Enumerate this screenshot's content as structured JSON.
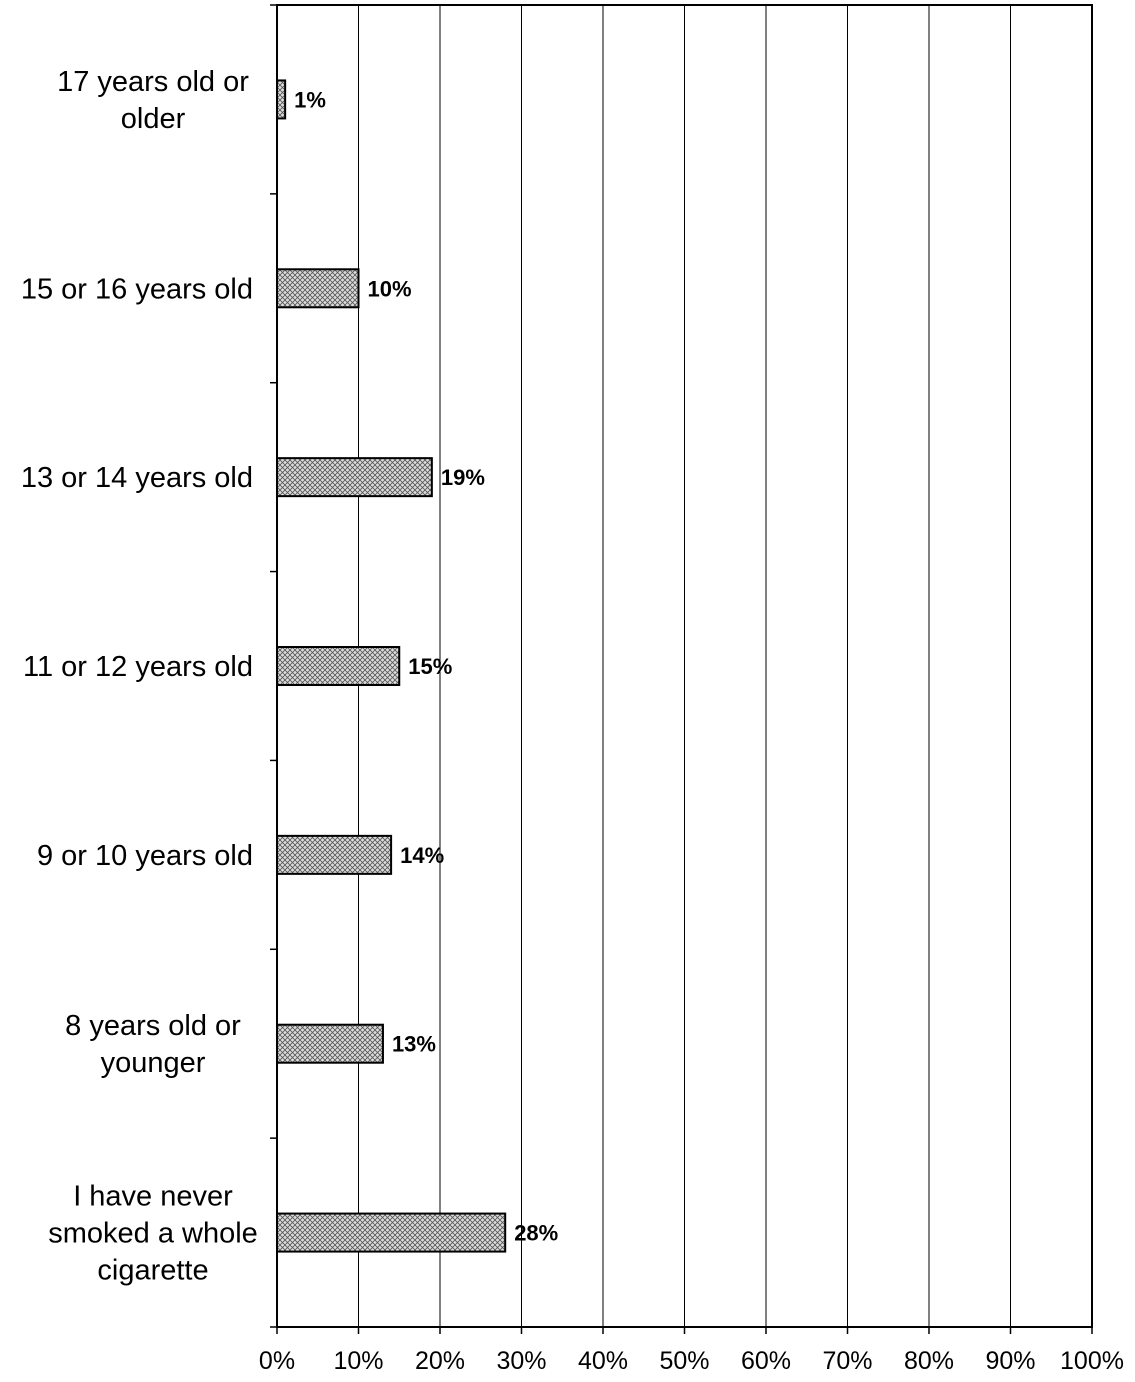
{
  "chart_data": {
    "type": "bar",
    "orientation": "horizontal",
    "categories": [
      "17 years old or older",
      "15 or 16 years old",
      "13 or 14 years old",
      "11 or 12 years old",
      "9 or 10 years old",
      "8 years old or younger",
      "I have never smoked a whole cigarette"
    ],
    "category_lines": [
      [
        "17 years old or",
        "older"
      ],
      [
        "15 or 16 years old"
      ],
      [
        "13 or 14 years old"
      ],
      [
        "11 or 12 years old"
      ],
      [
        "9 or 10 years old"
      ],
      [
        "8 years old or",
        "younger"
      ],
      [
        "I have never",
        "smoked a whole",
        "cigarette"
      ]
    ],
    "values": [
      1,
      10,
      19,
      15,
      14,
      13,
      28
    ],
    "data_labels": [
      "1%",
      "10%",
      "19%",
      "15%",
      "14%",
      "13%",
      "28%"
    ],
    "x_ticks": [
      "0%",
      "10%",
      "20%",
      "30%",
      "40%",
      "50%",
      "60%",
      "70%",
      "80%",
      "90%",
      "100%"
    ],
    "xlim": [
      0,
      100
    ],
    "xlabel": "",
    "ylabel": "",
    "grid": "vertical",
    "legend": "none",
    "bar_pattern": "crosshatch",
    "colors": {
      "bar_fill": "#d9d9d9",
      "bar_hatch": "#555555",
      "outline": "#000000",
      "grid": "#000000",
      "background": "#ffffff"
    }
  }
}
